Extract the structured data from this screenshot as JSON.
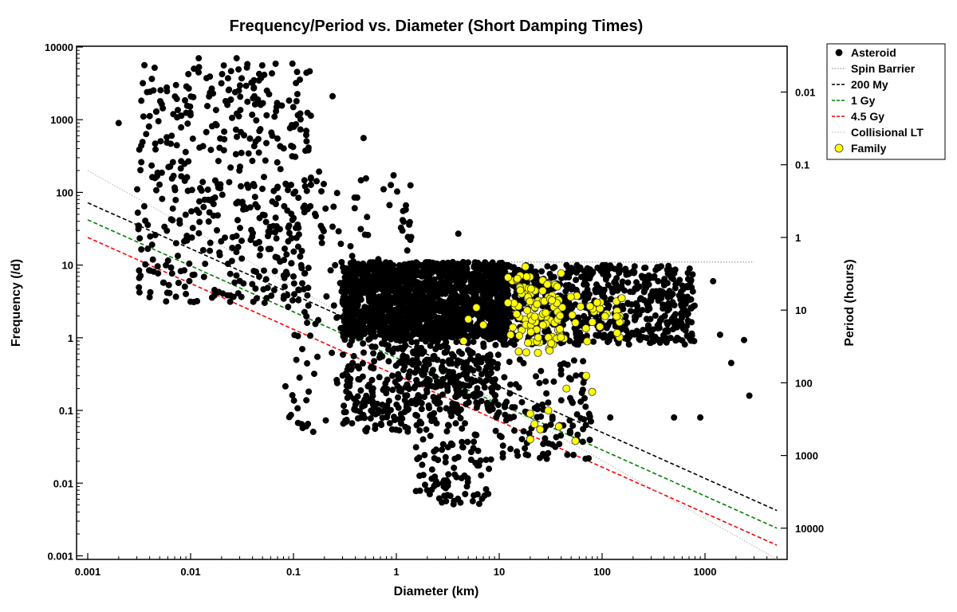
{
  "chart_data": {
    "type": "scatter",
    "title": "Frequency/Period vs. Diameter (Short Damping Times)",
    "xlabel": "Diameter (km)",
    "ylabel": "Frequency (/d)",
    "y2label": "Period (hours)",
    "xscale": "log",
    "yscale": "log",
    "xlim": [
      0.001,
      5000
    ],
    "ylim": [
      0.001,
      10000
    ],
    "x_ticks": [
      "0.001",
      "0.01",
      "0.1",
      "1",
      "10",
      "100",
      "1000"
    ],
    "y_ticks": [
      "0.001",
      "0.01",
      "0.1",
      "1",
      "10",
      "100",
      "1000",
      "10000"
    ],
    "y2_ticks": [
      "0.01",
      "0.1",
      "1",
      "10",
      "100",
      "1000",
      "10000"
    ],
    "grid": false,
    "legend_position": "top-right-outside",
    "legend": [
      {
        "label": "Asteroid",
        "kind": "marker",
        "color": "#000000"
      },
      {
        "label": "Spin Barrier",
        "kind": "line",
        "color": "#808080",
        "dash": "dot"
      },
      {
        "label": "200 My",
        "kind": "line",
        "color": "#000000",
        "dash": "dash"
      },
      {
        "label": "1 Gy",
        "kind": "line",
        "color": "#008000",
        "dash": "dash"
      },
      {
        "label": "4.5 Gy",
        "kind": "line",
        "color": "#ff0000",
        "dash": "dash"
      },
      {
        "label": "Collisional LT",
        "kind": "line",
        "color": "#b0b0b0",
        "dash": "dot"
      },
      {
        "label": "Family",
        "kind": "marker",
        "color": "#ffff00"
      }
    ],
    "lines": [
      {
        "name": "Spin Barrier",
        "points": [
          [
            2.0,
            11.0
          ],
          [
            3000,
            11.0
          ]
        ]
      },
      {
        "name": "200 My",
        "points": [
          [
            0.001,
            72
          ],
          [
            5000,
            0.0042
          ]
        ]
      },
      {
        "name": "1 Gy",
        "points": [
          [
            0.001,
            42
          ],
          [
            5000,
            0.0024
          ]
        ]
      },
      {
        "name": "4.5 Gy",
        "points": [
          [
            0.001,
            24
          ],
          [
            5000,
            0.0014
          ]
        ]
      },
      {
        "name": "Collisional LT",
        "points": [
          [
            0.001,
            200
          ],
          [
            5000,
            0.0009
          ]
        ]
      }
    ],
    "series": [
      {
        "name": "Asteroid",
        "color": "#000000",
        "clusters": [
          {
            "x": [
              0.003,
              0.15
            ],
            "y": [
              3,
              6000
            ],
            "n": 460
          },
          {
            "x": [
              0.08,
              1.5
            ],
            "y": [
              0.05,
              200
            ],
            "n": 200
          },
          {
            "x": [
              0.3,
              12
            ],
            "y": [
              1,
              11
            ],
            "n": 1500
          },
          {
            "x": [
              10,
              800
            ],
            "y": [
              0.8,
              10
            ],
            "n": 700
          },
          {
            "x": [
              1,
              10
            ],
            "y": [
              0.1,
              3
            ],
            "n": 350
          },
          {
            "x": [
              0.3,
              5
            ],
            "y": [
              0.05,
              1
            ],
            "n": 200
          },
          {
            "x": [
              1.5,
              8
            ],
            "y": [
              0.005,
              0.05
            ],
            "n": 90
          },
          {
            "x": [
              8,
              80
            ],
            "y": [
              0.02,
              0.5
            ],
            "n": 130
          }
        ],
        "points": [
          [
            0.002,
            900
          ],
          [
            0.009,
            4
          ],
          [
            0.012,
            7000
          ],
          [
            0.028,
            7000
          ],
          [
            0.24,
            2100
          ],
          [
            0.48,
            560
          ],
          [
            4.0,
            27
          ],
          [
            1200,
            6
          ],
          [
            1400,
            1.1
          ],
          [
            1800,
            0.45
          ],
          [
            2400,
            0.93
          ],
          [
            2700,
            0.16
          ],
          [
            900,
            0.08
          ],
          [
            120,
            0.08
          ],
          [
            500,
            0.08
          ]
        ]
      },
      {
        "name": "Family",
        "color": "#ffff00",
        "clusters": [
          {
            "x": [
              12,
              40
            ],
            "y": [
              0.6,
              8
            ],
            "n": 90
          },
          {
            "x": [
              30,
              150
            ],
            "y": [
              0.8,
              4
            ],
            "n": 35
          }
        ],
        "points": [
          [
            5,
            1.8
          ],
          [
            6,
            2.6
          ],
          [
            7,
            1.5
          ],
          [
            4.5,
            0.9
          ],
          [
            18,
            9.5
          ],
          [
            15,
            6.5
          ],
          [
            80,
            0.18
          ],
          [
            70,
            0.3
          ],
          [
            45,
            0.2
          ],
          [
            30,
            0.1
          ],
          [
            20,
            0.09
          ],
          [
            22,
            0.065
          ],
          [
            25,
            0.055
          ],
          [
            38,
            0.06
          ],
          [
            55,
            0.038
          ],
          [
            20,
            0.04
          ],
          [
            155,
            3.5
          ]
        ]
      }
    ]
  }
}
